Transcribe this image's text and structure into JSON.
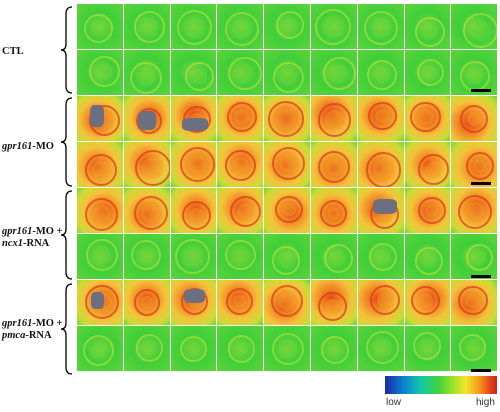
{
  "groups": [
    {
      "label_parts": [
        {
          "text": "CTL",
          "italic": false
        }
      ],
      "type": "ctl"
    },
    {
      "label_parts": [
        {
          "text": "gpr161",
          "italic": true
        },
        {
          "text": "-MO",
          "italic": false
        }
      ],
      "type": "mo"
    },
    {
      "label_parts": [
        {
          "text": "gpr161",
          "italic": true
        },
        {
          "text": "-MO +",
          "italic": false
        },
        {
          "br": true
        },
        {
          "text": "ncx1",
          "italic": true
        },
        {
          "text": "-RNA",
          "italic": false
        }
      ],
      "type": "ncx"
    },
    {
      "label_parts": [
        {
          "text": "gpr161",
          "italic": true
        },
        {
          "text": "-MO +",
          "italic": false
        },
        {
          "br": true
        },
        {
          "text": "pmca",
          "italic": true
        },
        {
          "text": "-RNA",
          "italic": false
        }
      ],
      "type": "pmca"
    }
  ],
  "legend": {
    "low": "low",
    "high": "high",
    "colors": [
      "#1b2aa5",
      "#0a8ad0",
      "#16c6a8",
      "#3fd33a",
      "#9ae02a",
      "#f3e62a",
      "#f39a1c",
      "#e3421a",
      "#c62818"
    ]
  }
}
